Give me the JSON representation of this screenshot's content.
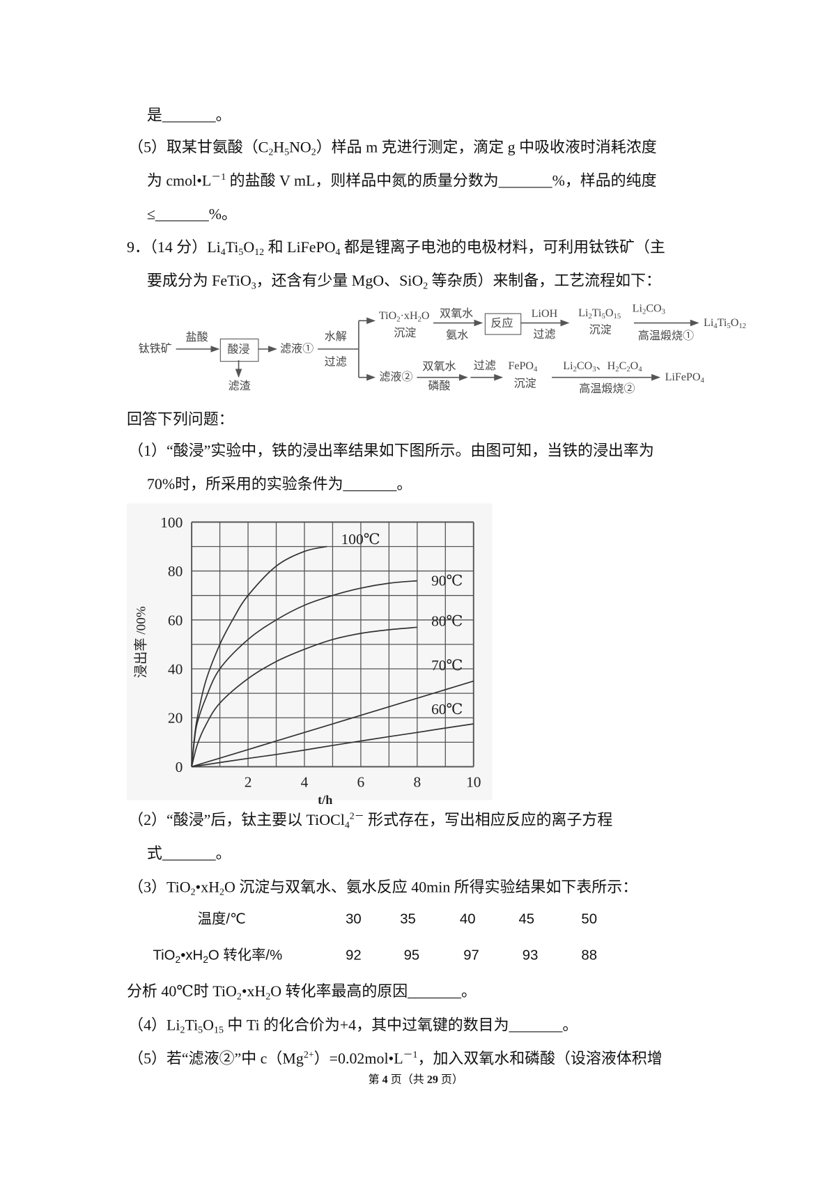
{
  "lines": {
    "l1": [
      "是_______。"
    ],
    "l2": [
      "（5）取某甘氨酸（C",
      {
        "sub": "2"
      },
      "H",
      {
        "sub": "5"
      },
      "NO",
      {
        "sub": "2"
      },
      "）样品 m 克进行测定，滴定 g 中吸收液时消耗浓度"
    ],
    "l3": [
      "为 cmol•L",
      {
        "sup": "－1"
      },
      " 的盐酸 V mL，则样品中氮的质量分数为_______%，样品的纯度"
    ],
    "l4": [
      "≤_______%。"
    ],
    "l5": [
      "9．（14 分）Li",
      {
        "sub": "4"
      },
      "Ti",
      {
        "sub": "5"
      },
      "O",
      {
        "sub": "12"
      },
      " 和 LiFePO",
      {
        "sub": "4"
      },
      " 都是锂离子电池的电极材料，可利用钛铁矿（主"
    ],
    "l6": [
      "要成分为 FeTiO",
      {
        "sub": "3"
      },
      "，还含有少量 MgO、SiO",
      {
        "sub": "2"
      },
      " 等杂质）来制备，工艺流程如下："
    ],
    "l7": [
      "回答下列问题："
    ],
    "l8": [
      "（1）“酸浸”实验中，铁的浸出率结果如下图所示。由图可知，当铁的浸出率为"
    ],
    "l9": [
      "70%时，所采用的实验条件为_______。"
    ],
    "l10": [
      "（2）“酸浸”后，钛主要以 TiOCl",
      {
        "sub": "4"
      },
      {
        "sup": "2－"
      },
      " 形式存在，写出相应反应的离子方程"
    ],
    "l11": [
      "式_______。"
    ],
    "l12": [
      "（3）TiO",
      {
        "sub": "2"
      },
      "•xH",
      {
        "sub": "2"
      },
      "O 沉淀与双氧水、氨水反应 40min 所得实验结果如下表所示："
    ],
    "l13": [
      "分析 40℃时 TiO",
      {
        "sub": "2"
      },
      "•xH",
      {
        "sub": "2"
      },
      "O 转化率最高的原因_______。"
    ],
    "l14": [
      "（4）Li",
      {
        "sub": "2"
      },
      "Ti",
      {
        "sub": "5"
      },
      "O",
      {
        "sub": "15"
      },
      " 中 Ti 的化合价为+4，其中过氧键的数目为_______。"
    ],
    "l15": [
      "（5）若“滤液②”中 c（Mg",
      {
        "sup": "2+"
      },
      "）=0.02mol•L",
      {
        "sup": "－1"
      },
      "，加入双氧水和磷酸（设溶液体积增"
    ]
  },
  "flowchart": {
    "ore": [
      "钛铁矿"
    ],
    "hcl": [
      "盐酸"
    ],
    "acid_leach": [
      "酸浸"
    ],
    "residue": [
      "滤渣"
    ],
    "filtrate1": [
      "滤液①"
    ],
    "hydrolysis": [
      "水解"
    ],
    "filter1": [
      "过滤"
    ],
    "tio2": [
      "TiO",
      {
        "sub": "2"
      },
      "·xH",
      {
        "sub": "2"
      },
      "O"
    ],
    "precip1": [
      "沉淀"
    ],
    "h2o2_1": [
      "双氧水"
    ],
    "ammonia": [
      "氨水"
    ],
    "reaction": [
      "反应"
    ],
    "lioh": [
      "LiOH"
    ],
    "filter2": [
      "过滤"
    ],
    "li2ti5o15": [
      "Li",
      {
        "sub": "2"
      },
      "Ti",
      {
        "sub": "5"
      },
      "O",
      {
        "sub": "15"
      }
    ],
    "precip2": [
      "沉淀"
    ],
    "li2co3": [
      "Li",
      {
        "sub": "2"
      },
      "CO",
      {
        "sub": "3"
      }
    ],
    "calcine1": [
      "高温煅烧①"
    ],
    "li4ti5o12": [
      "Li",
      {
        "sub": "4"
      },
      "Ti",
      {
        "sub": "5"
      },
      "O",
      {
        "sub": "12"
      }
    ],
    "filtrate2": [
      "滤液②"
    ],
    "h2o2_2": [
      "双氧水"
    ],
    "phosphoric": [
      "磷酸"
    ],
    "filter3": [
      "过滤"
    ],
    "fepo4": [
      "FePO",
      {
        "sub": "4"
      }
    ],
    "precip3": [
      "沉淀"
    ],
    "reagents2": [
      "Li",
      {
        "sub": "2"
      },
      "CO",
      {
        "sub": "3"
      },
      "、H",
      {
        "sub": "2"
      },
      "C",
      {
        "sub": "2"
      },
      "O",
      {
        "sub": "4"
      }
    ],
    "calcine2": [
      "高温煅烧②"
    ],
    "lifepo4": [
      "LiFePO",
      {
        "sub": "4"
      }
    ]
  },
  "table": {
    "row1_label": "温度/℃",
    "row1_values": [
      "30",
      "35",
      "40",
      "45",
      "50"
    ],
    "row2_label": [
      "TiO",
      {
        "sub": "2"
      },
      "•xH",
      {
        "sub": "2"
      },
      "O 转化率/%"
    ],
    "row2_values": [
      "92",
      "95",
      "97",
      "93",
      "88"
    ]
  },
  "footer": {
    "prefix": "第 ",
    "page": "4",
    "middle": " 页（共 ",
    "total": "29",
    "suffix": " 页）"
  },
  "chart_data": {
    "type": "line",
    "title": "",
    "xlabel": "t/h",
    "ylabel": "浸出率 /00%",
    "xlim": [
      0,
      10
    ],
    "ylim": [
      0,
      100
    ],
    "xticks": [
      "2",
      "4",
      "6",
      "8",
      "10"
    ],
    "yticks": [
      "0",
      "20",
      "40",
      "60",
      "80",
      "100"
    ],
    "grid": true,
    "x_grid_step": 1,
    "y_grid_step": 10,
    "line_color": "#333333",
    "series": [
      {
        "name": "100℃",
        "points": [
          [
            0,
            0
          ],
          [
            0.1,
            12
          ],
          [
            0.2,
            20
          ],
          [
            0.5,
            35
          ],
          [
            1,
            50
          ],
          [
            1.5,
            61
          ],
          [
            2,
            70
          ],
          [
            3,
            82
          ],
          [
            4,
            88
          ],
          [
            4.8,
            90
          ]
        ]
      },
      {
        "name": "90℃",
        "points": [
          [
            0,
            0
          ],
          [
            0.1,
            11
          ],
          [
            0.2,
            18
          ],
          [
            0.5,
            28
          ],
          [
            1,
            40
          ],
          [
            2,
            52
          ],
          [
            3,
            60
          ],
          [
            4,
            66
          ],
          [
            5,
            70
          ],
          [
            6,
            73
          ],
          [
            7,
            75
          ],
          [
            8,
            76
          ]
        ]
      },
      {
        "name": "80℃",
        "points": [
          [
            0,
            0
          ],
          [
            0.2,
            9
          ],
          [
            0.5,
            17
          ],
          [
            1,
            26
          ],
          [
            2,
            36
          ],
          [
            3,
            43
          ],
          [
            4,
            48
          ],
          [
            5,
            52
          ],
          [
            6,
            54.5
          ],
          [
            7,
            56
          ],
          [
            8,
            57
          ]
        ]
      },
      {
        "name": "70℃",
        "points": [
          [
            0,
            0
          ],
          [
            1,
            3.5
          ],
          [
            2,
            7
          ],
          [
            3,
            10.5
          ],
          [
            4,
            14
          ],
          [
            5,
            17.5
          ],
          [
            6,
            21
          ],
          [
            7,
            24.5
          ],
          [
            8,
            28
          ],
          [
            9,
            31.5
          ],
          [
            10,
            35
          ]
        ]
      },
      {
        "name": "60℃",
        "points": [
          [
            0,
            0
          ],
          [
            1,
            1.7
          ],
          [
            2,
            3.4
          ],
          [
            3,
            5
          ],
          [
            4,
            6.8
          ],
          [
            5,
            8.7
          ],
          [
            6,
            10.5
          ],
          [
            7,
            12.3
          ],
          [
            8,
            14
          ],
          [
            9,
            15.8
          ],
          [
            10,
            17.5
          ]
        ]
      }
    ]
  }
}
